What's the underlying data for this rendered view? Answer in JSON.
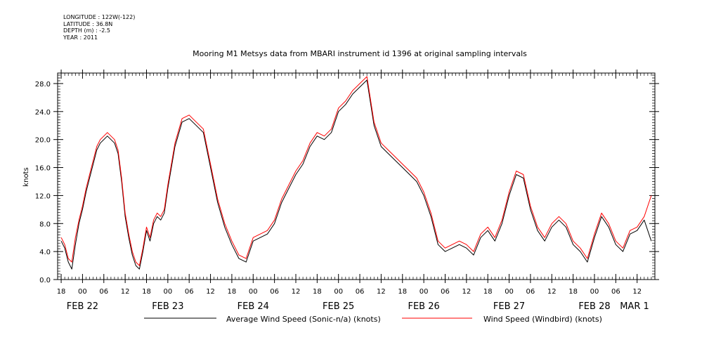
{
  "meta": {
    "longitude": "LONGITUDE : 122W(-122)",
    "latitude": "LATITUDE : 36.8N",
    "depth": "DEPTH (m) : -2.5",
    "year": "YEAR : 2011"
  },
  "chart_data": {
    "type": "line",
    "title": "Mooring M1 Metsys data from MBARI instrument id 1396 at original sampling intervals",
    "xlabel": "",
    "ylabel": "knots",
    "x_unit": "hours since FEB 22 00:00 (2011)",
    "xlim": [
      -7,
      161
    ],
    "ylim": [
      0,
      29.5
    ],
    "y_ticks": [
      0,
      4,
      8,
      12,
      16,
      20,
      24,
      28
    ],
    "y_tick_labels": [
      "0.0",
      "4.0",
      "8.0",
      "12.0",
      "16.0",
      "20.0",
      "24.0",
      "28.0"
    ],
    "x_ticks": [
      -6,
      0,
      6,
      12,
      18,
      24,
      30,
      36,
      42,
      48,
      54,
      60,
      66,
      72,
      78,
      84,
      90,
      96,
      102,
      108,
      114,
      120,
      126,
      132,
      138,
      144,
      150,
      156
    ],
    "x_tick_labels": [
      "18",
      "00",
      "06",
      "12",
      "18",
      "00",
      "06",
      "12",
      "18",
      "00",
      "06",
      "12",
      "18",
      "00",
      "06",
      "12",
      "18",
      "00",
      "06",
      "12",
      "18",
      "00",
      "06",
      "12",
      "18",
      "00",
      "06",
      "12"
    ],
    "date_labels": [
      {
        "x": 0,
        "label": "FEB 22"
      },
      {
        "x": 24,
        "label": "FEB 23"
      },
      {
        "x": 48,
        "label": "FEB 24"
      },
      {
        "x": 72,
        "label": "FEB 25"
      },
      {
        "x": 96,
        "label": "FEB 26"
      },
      {
        "x": 120,
        "label": "FEB 27"
      },
      {
        "x": 144,
        "label": "FEB 28"
      },
      {
        "x": 168,
        "label": "MAR  1"
      }
    ],
    "grid": false,
    "legend_position": "bottom",
    "series": [
      {
        "name": "Average Wind Speed (Sonic-n/a) (knots)",
        "color": "#000000",
        "x": [
          -6,
          -5,
          -4,
          -3,
          -2,
          -1,
          0,
          1,
          2,
          3,
          4,
          5,
          6,
          7,
          8,
          9,
          10,
          11,
          12,
          13,
          14,
          15,
          16,
          17,
          18,
          19,
          20,
          21,
          22,
          23,
          24,
          26,
          28,
          30,
          32,
          34,
          36,
          38,
          40,
          42,
          44,
          46,
          48,
          50,
          52,
          54,
          56,
          58,
          60,
          62,
          64,
          66,
          68,
          70,
          72,
          74,
          76,
          78,
          80,
          82,
          84,
          86,
          88,
          90,
          92,
          94,
          96,
          98,
          100,
          102,
          104,
          106,
          108,
          110,
          112,
          114,
          116,
          118,
          120,
          122,
          124,
          126,
          128,
          130,
          132,
          134,
          136,
          138,
          140,
          142,
          144,
          146,
          148,
          150,
          152,
          154,
          156,
          158,
          160
        ],
        "y": [
          5.5,
          4.5,
          2.5,
          1.5,
          5,
          8,
          10,
          12.5,
          14.5,
          16.5,
          18.5,
          19.5,
          20,
          20.5,
          20,
          19.5,
          18,
          14,
          9,
          6,
          3.5,
          2,
          1.5,
          4,
          7,
          5.5,
          8,
          9,
          8.5,
          9.5,
          13,
          19,
          22.5,
          23,
          22,
          21,
          16,
          11,
          7.5,
          5,
          3,
          2.5,
          5.5,
          6,
          6.5,
          8,
          11,
          13,
          15,
          16.5,
          19,
          20.5,
          20,
          21,
          24,
          25,
          26.5,
          27.5,
          28.5,
          22,
          19,
          18,
          17,
          16,
          15,
          14,
          12,
          9,
          5,
          4,
          4.5,
          5,
          4.5,
          3.5,
          6,
          7,
          5.5,
          8,
          12,
          15,
          14.5,
          10,
          7,
          5.5,
          7.5,
          8.5,
          7.5,
          5,
          4,
          2.5,
          6,
          9,
          7.5,
          5,
          4,
          6.5,
          7,
          8.5,
          5.5
        ]
      },
      {
        "name": "Wind Speed (Windbird) (knots)",
        "color": "#ff0000",
        "x": [
          -6,
          -5,
          -4,
          -3,
          -2,
          -1,
          0,
          1,
          2,
          3,
          4,
          5,
          6,
          7,
          8,
          9,
          10,
          11,
          12,
          13,
          14,
          15,
          16,
          17,
          18,
          19,
          20,
          21,
          22,
          23,
          24,
          26,
          28,
          30,
          32,
          34,
          36,
          38,
          40,
          42,
          44,
          46,
          48,
          50,
          52,
          54,
          56,
          58,
          60,
          62,
          64,
          66,
          68,
          70,
          72,
          74,
          76,
          78,
          80,
          82,
          84,
          86,
          88,
          90,
          92,
          94,
          96,
          98,
          100,
          102,
          104,
          106,
          108,
          110,
          112,
          114,
          116,
          118,
          120,
          122,
          124,
          126,
          128,
          130,
          132,
          134,
          136,
          138,
          140,
          142,
          144,
          146,
          148,
          150,
          152,
          154,
          156,
          158,
          160
        ],
        "y": [
          6,
          5,
          3,
          2.5,
          6,
          8.5,
          10.5,
          13,
          15,
          17,
          19,
          20,
          20.5,
          21,
          20.5,
          20,
          18.5,
          14.5,
          9.5,
          6.5,
          4,
          2.5,
          2,
          4.5,
          7.5,
          6,
          8.5,
          9.5,
          9,
          10,
          13.5,
          19.5,
          23,
          23.5,
          22.5,
          21.5,
          16.5,
          11.5,
          8,
          5.5,
          3.5,
          3,
          6,
          6.5,
          7,
          8.5,
          11.5,
          13.5,
          15.5,
          17,
          19.5,
          21,
          20.5,
          21.5,
          24.5,
          25.5,
          27,
          28,
          29,
          22.5,
          19.5,
          18.5,
          17.5,
          16.5,
          15.5,
          14.5,
          12.5,
          9.5,
          5.5,
          4.5,
          5,
          5.5,
          5,
          4,
          6.5,
          7.5,
          6,
          8.5,
          12.5,
          15.5,
          15,
          10.5,
          7.5,
          6,
          8,
          9,
          8,
          5.5,
          4.5,
          3,
          6.5,
          9.5,
          8,
          5.5,
          4.5,
          7,
          7.5,
          9,
          12
        ]
      }
    ]
  }
}
